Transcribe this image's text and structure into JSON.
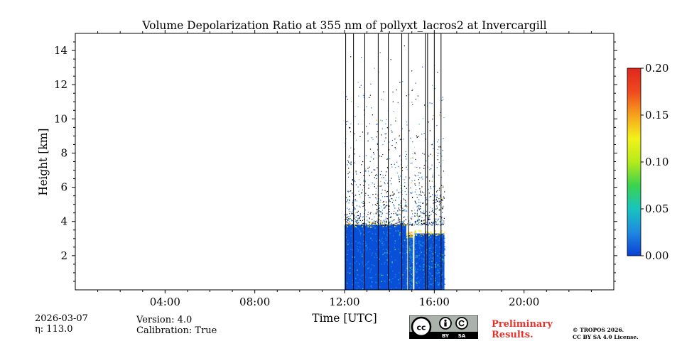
{
  "chart_data": {
    "type": "heatmap",
    "title": "Volume Depolarization Ratio at 355 nm of pollyxt_lacros2 at Invercargill",
    "xlabel": "Time [UTC]",
    "ylabel": "Height [km]",
    "xlim": [
      0,
      24
    ],
    "ylim": [
      0,
      15
    ],
    "x_ticks": [
      {
        "value": 4,
        "label": "04:00"
      },
      {
        "value": 8,
        "label": "08:00"
      },
      {
        "value": 12,
        "label": "12:00"
      },
      {
        "value": 16,
        "label": "16:00"
      },
      {
        "value": 20,
        "label": "20:00"
      }
    ],
    "y_ticks": [
      {
        "value": 2,
        "label": "2"
      },
      {
        "value": 4,
        "label": "4"
      },
      {
        "value": 6,
        "label": "6"
      },
      {
        "value": 8,
        "label": "8"
      },
      {
        "value": 10,
        "label": "10"
      },
      {
        "value": 12,
        "label": "12"
      },
      {
        "value": 14,
        "label": "14"
      }
    ],
    "colorbar": {
      "range": [
        0.0,
        0.2
      ],
      "ticks": [
        {
          "value": 0.0,
          "label": "0.00"
        },
        {
          "value": 0.05,
          "label": "0.05"
        },
        {
          "value": 0.1,
          "label": "0.10"
        },
        {
          "value": 0.15,
          "label": "0.15"
        },
        {
          "value": 0.2,
          "label": "0.20"
        }
      ],
      "colormap": [
        "#0a3fd6",
        "#1e8ae0",
        "#18c4c0",
        "#3ad34e",
        "#b6ea1a",
        "#f2f21a",
        "#f6a21c",
        "#ef4a1e",
        "#e0261e"
      ]
    },
    "data_window": {
      "start": 12.0,
      "end": 16.45
    },
    "boundary_layer": [
      {
        "start": 12.0,
        "end": 14.75,
        "top_km": 3.8
      },
      {
        "start": 14.75,
        "end": 15.1,
        "top_km": 3.2
      },
      {
        "start": 15.1,
        "end": 16.45,
        "top_km": 3.3
      }
    ],
    "gap_lines": [
      12.05,
      12.4,
      12.9,
      13.5,
      13.95,
      14.55,
      14.85,
      15.6,
      15.7,
      16.0,
      16.3
    ],
    "no_data_gaps": [
      {
        "start": 14.8,
        "end": 14.85
      },
      {
        "start": 15.05,
        "end": 15.1
      }
    ]
  },
  "footer": {
    "date": "2026-03-07",
    "eta": "η: 113.0",
    "version": "Version: 4.0",
    "calibration": "Calibration: True",
    "preliminary_line1": "Preliminary",
    "preliminary_line2": "Results.",
    "license_line1": "© TROPOS 2026.",
    "license_line2": "CC BY SA 4.0 License.",
    "badge_text_by": "BY",
    "badge_text_sa": "SA"
  }
}
